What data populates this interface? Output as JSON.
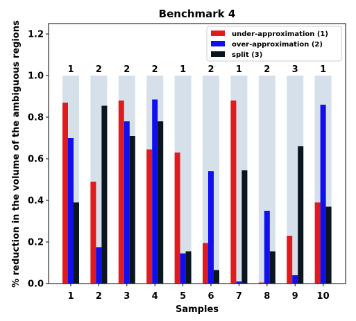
{
  "chart_data": {
    "type": "bar",
    "title": "Benchmark 4",
    "xlabel": "Samples",
    "ylabel": "% reduction in the volume of the ambiguous regions",
    "categories": [
      "1",
      "2",
      "3",
      "4",
      "5",
      "6",
      "7",
      "8",
      "9",
      "10"
    ],
    "ylim": [
      0,
      1.25
    ],
    "yticks": [
      "0.0",
      "0.2",
      "0.4",
      "0.6",
      "0.8",
      "1.0",
      "1.2"
    ],
    "ytick_values": [
      0,
      0.2,
      0.4,
      0.6,
      0.8,
      1.0,
      1.2
    ],
    "background_value": 1.0,
    "background_color": "#d6e0ea",
    "annotations": [
      "1",
      "2",
      "2",
      "2",
      "1",
      "2",
      "1",
      "2",
      "3",
      "1"
    ],
    "series": [
      {
        "name": "under-approximation (1)",
        "color": "#e31a1c",
        "values": [
          0.87,
          0.49,
          0.88,
          0.645,
          0.63,
          0.195,
          0.88,
          0.005,
          0.23,
          0.39
        ]
      },
      {
        "name": "over-approximation (2)",
        "color": "#1010ee",
        "values": [
          0.7,
          0.175,
          0.78,
          0.885,
          0.145,
          0.54,
          0.01,
          0.35,
          0.04,
          0.86
        ]
      },
      {
        "name": "split (3)",
        "color": "#0a1520",
        "values": [
          0.39,
          0.855,
          0.71,
          0.78,
          0.155,
          0.065,
          0.545,
          0.155,
          0.66,
          0.37
        ]
      }
    ],
    "grid": false,
    "legend_position": "top-right"
  }
}
